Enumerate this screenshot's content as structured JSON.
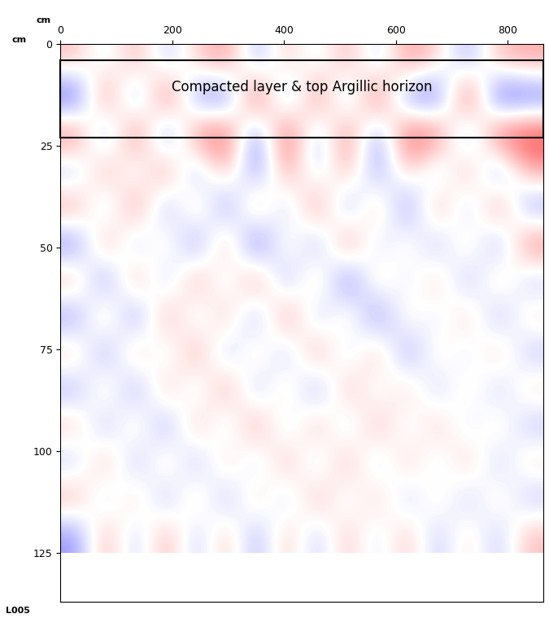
{
  "chart_data": {
    "type": "heatmap",
    "x_label": "cm",
    "y_label": "cm",
    "line_name": "L005",
    "annotations": [
      {
        "text": "Compacted layer & top Argillic horizon",
        "y_range": [
          4,
          23
        ]
      }
    ],
    "xlim": [
      0,
      864
    ],
    "ylim": [
      0,
      137
    ],
    "xticks": [
      0,
      200,
      400,
      600,
      800
    ],
    "yticks": [
      0,
      25,
      50,
      75,
      100,
      125
    ],
    "cells_x_range": [
      0,
      864
    ],
    "cells_y_range": [
      0,
      125
    ],
    "clim": [
      -1,
      1
    ],
    "cells": [
      [
        0.3,
        -0.2,
        0.4,
        -0.3,
        0.2,
        0.5,
        -0.4,
        0.3,
        -0.2,
        0.4,
        -0.3,
        0.5,
        0.2,
        -0.4,
        0.3,
        0.4
      ],
      [
        -0.8,
        0.7,
        -0.6,
        0.8,
        -0.5,
        -0.7,
        0.9,
        -0.6,
        0.7,
        -0.5,
        0.8,
        -0.6,
        -0.7,
        0.9,
        -0.8,
        -0.7
      ],
      [
        0.7,
        -0.6,
        0.8,
        -0.7,
        0.6,
        0.8,
        -0.7,
        0.9,
        -0.5,
        0.7,
        -0.6,
        0.8,
        0.7,
        -0.6,
        0.8,
        0.9
      ],
      [
        -0.4,
        0.5,
        -0.3,
        0.6,
        -0.5,
        0.4,
        -0.6,
        0.5,
        -0.3,
        0.4,
        -0.5,
        0.3,
        -0.4,
        0.5,
        -0.6,
        0.4
      ],
      [
        0.5,
        -0.4,
        0.6,
        -0.5,
        0.4,
        -0.6,
        0.5,
        -0.4,
        0.6,
        -0.5,
        0.4,
        -0.6,
        0.5,
        -0.4,
        0.6,
        -0.5
      ],
      [
        -0.6,
        0.5,
        -0.4,
        0.3,
        -0.6,
        0.5,
        -0.8,
        0.3,
        -0.5,
        0.6,
        -0.3,
        0.2,
        -0.4,
        0.3,
        -0.5,
        0.6
      ],
      [
        0.4,
        -0.6,
        0.5,
        -0.4,
        0.5,
        -0.3,
        0.6,
        -0.5,
        0.4,
        -0.7,
        0.3,
        -0.2,
        0.3,
        -0.4,
        0.3,
        -0.3
      ],
      [
        -0.5,
        0.4,
        -0.6,
        0.5,
        -0.3,
        0.4,
        -0.5,
        0.6,
        -0.4,
        0.3,
        -0.6,
        0.2,
        -0.2,
        0.3,
        -0.4,
        0.2
      ],
      [
        0.3,
        -0.5,
        0.4,
        -0.3,
        0.5,
        -0.4,
        0.3,
        -0.4,
        0.5,
        -0.3,
        0.4,
        -0.5,
        0.2,
        -0.2,
        0.3,
        -0.3
      ],
      [
        -0.4,
        0.3,
        -0.5,
        0.4,
        -0.3,
        0.5,
        -0.4,
        0.3,
        -0.5,
        0.4,
        -0.2,
        0.3,
        -0.3,
        0.2,
        -0.3,
        0.2
      ],
      [
        0.3,
        -0.4,
        0.3,
        -0.5,
        0.4,
        -0.3,
        0.5,
        -0.3,
        0.4,
        -0.3,
        0.4,
        -0.2,
        0.3,
        -0.2,
        0.2,
        -0.3
      ],
      [
        -0.3,
        0.4,
        -0.4,
        0.3,
        -0.4,
        0.3,
        -0.3,
        0.4,
        -0.3,
        0.4,
        -0.3,
        0.3,
        -0.2,
        0.3,
        -0.3,
        0.2
      ],
      [
        0.4,
        -0.3,
        0.3,
        -0.4,
        0.3,
        -0.4,
        0.3,
        -0.3,
        0.4,
        -0.2,
        0.3,
        -0.3,
        0.2,
        -0.3,
        0.2,
        -0.3
      ],
      [
        -0.5,
        0.4,
        -0.3,
        0.4,
        -0.3,
        0.3,
        -0.4,
        0.3,
        -0.3,
        0.3,
        -0.2,
        0.3,
        -0.3,
        0.2,
        -0.3,
        0.3
      ]
    ]
  }
}
